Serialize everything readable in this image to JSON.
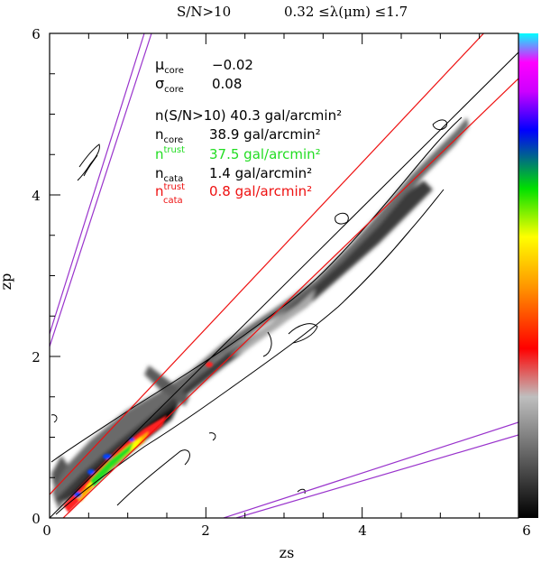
{
  "chart_data": {
    "type": "heatmap",
    "title_left": "S/N>10",
    "title_right": "0.32 ≤λ(μm) ≤1.7",
    "xlabel": "zs",
    "ylabel": "zp",
    "xlim": [
      0,
      6
    ],
    "ylim": [
      0,
      6
    ],
    "x_ticks": [
      "0",
      "2",
      "4",
      "6"
    ],
    "y_ticks": [
      "0",
      "2",
      "4",
      "6"
    ],
    "colorbar": {
      "min": 0,
      "max": 6,
      "tick_label": "6"
    },
    "reference_lines": {
      "identity": "zp = zs",
      "core_bounds": [
        "zp = zs + 0.15(1+zs)",
        "zp = zs - 0.15(1+zs)"
      ],
      "catastrophic_bounds": [
        "upper-left pair",
        "lower-right pair"
      ]
    },
    "annotations": {
      "mu_core": {
        "symbol": "μ",
        "sub": "core",
        "value": "−0.02"
      },
      "sigma_core": {
        "symbol": "σ",
        "sub": "core",
        "value": "0.08"
      },
      "n_total": "n(S/N>10)  40.3 gal/arcmin²",
      "n_core": {
        "symbol": "n",
        "sub": "core",
        "value": "38.9 gal/arcmin²"
      },
      "n_trust": {
        "symbol": "n",
        "sup": "trust",
        "value": "37.5 gal/arcmin²"
      },
      "n_cata": {
        "symbol": "n",
        "sub": "cata",
        "value": "1.4 gal/arcmin²"
      },
      "n_trust_cata": {
        "symbol": "n",
        "sup": "trust",
        "sub": "cata",
        "value": "0.8 gal/arcmin²"
      }
    },
    "colors": {
      "identity_line": "#000000",
      "core_lines": "#ee1111",
      "cata_lines": "#9933cc",
      "trust_text": "#22dd22",
      "trust_cata_text": "#ee1111"
    }
  }
}
